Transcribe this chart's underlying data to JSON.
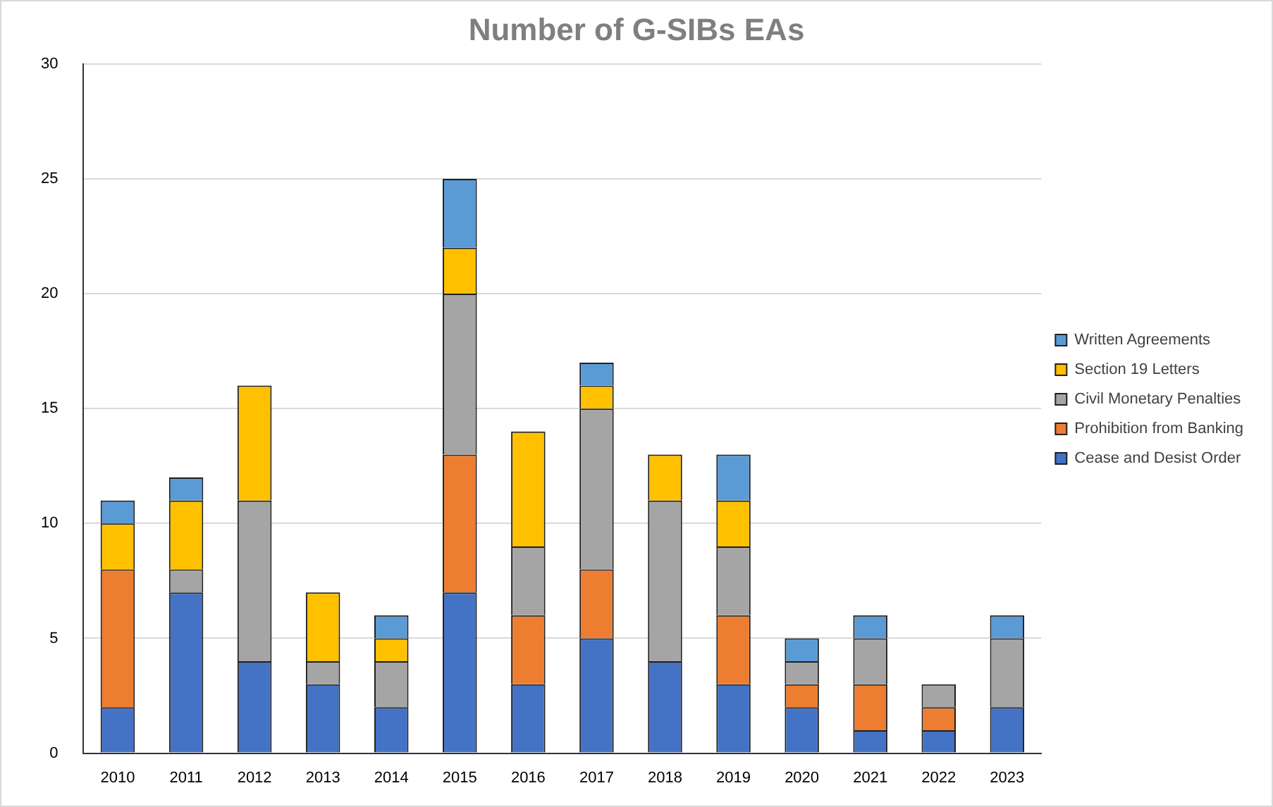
{
  "chart_data": {
    "type": "bar",
    "title": "Number of G-SIBs EAs",
    "stacked": true,
    "categories": [
      "2010",
      "2011",
      "2012",
      "2013",
      "2014",
      "2015",
      "2016",
      "2017",
      "2018",
      "2019",
      "2020",
      "2021",
      "2022",
      "2023"
    ],
    "series": [
      {
        "name": "Cease and Desist Order",
        "color": "#4472c4",
        "values": [
          2,
          7,
          4,
          3,
          2,
          7,
          3,
          5,
          4,
          3,
          2,
          1,
          1,
          2
        ]
      },
      {
        "name": "Prohibition from Banking",
        "color": "#ed7d31",
        "values": [
          6,
          0,
          0,
          0,
          0,
          6,
          3,
          3,
          0,
          3,
          1,
          2,
          1,
          0
        ]
      },
      {
        "name": "Civil Monetary Penalties",
        "color": "#a5a5a5",
        "values": [
          0,
          1,
          7,
          1,
          2,
          7,
          3,
          7,
          7,
          3,
          1,
          2,
          1,
          3
        ]
      },
      {
        "name": "Section 19 Letters",
        "color": "#ffc000",
        "values": [
          2,
          3,
          5,
          3,
          1,
          2,
          5,
          1,
          2,
          2,
          0,
          0,
          0,
          0
        ]
      },
      {
        "name": "Written Agreements",
        "color": "#5b9bd5",
        "values": [
          1,
          1,
          0,
          0,
          1,
          3,
          0,
          1,
          0,
          2,
          1,
          1,
          0,
          1
        ]
      }
    ],
    "ylim": [
      0,
      30
    ],
    "yticks": [
      0,
      5,
      10,
      15,
      20,
      25,
      30
    ],
    "grid": "y",
    "legend": "right"
  }
}
